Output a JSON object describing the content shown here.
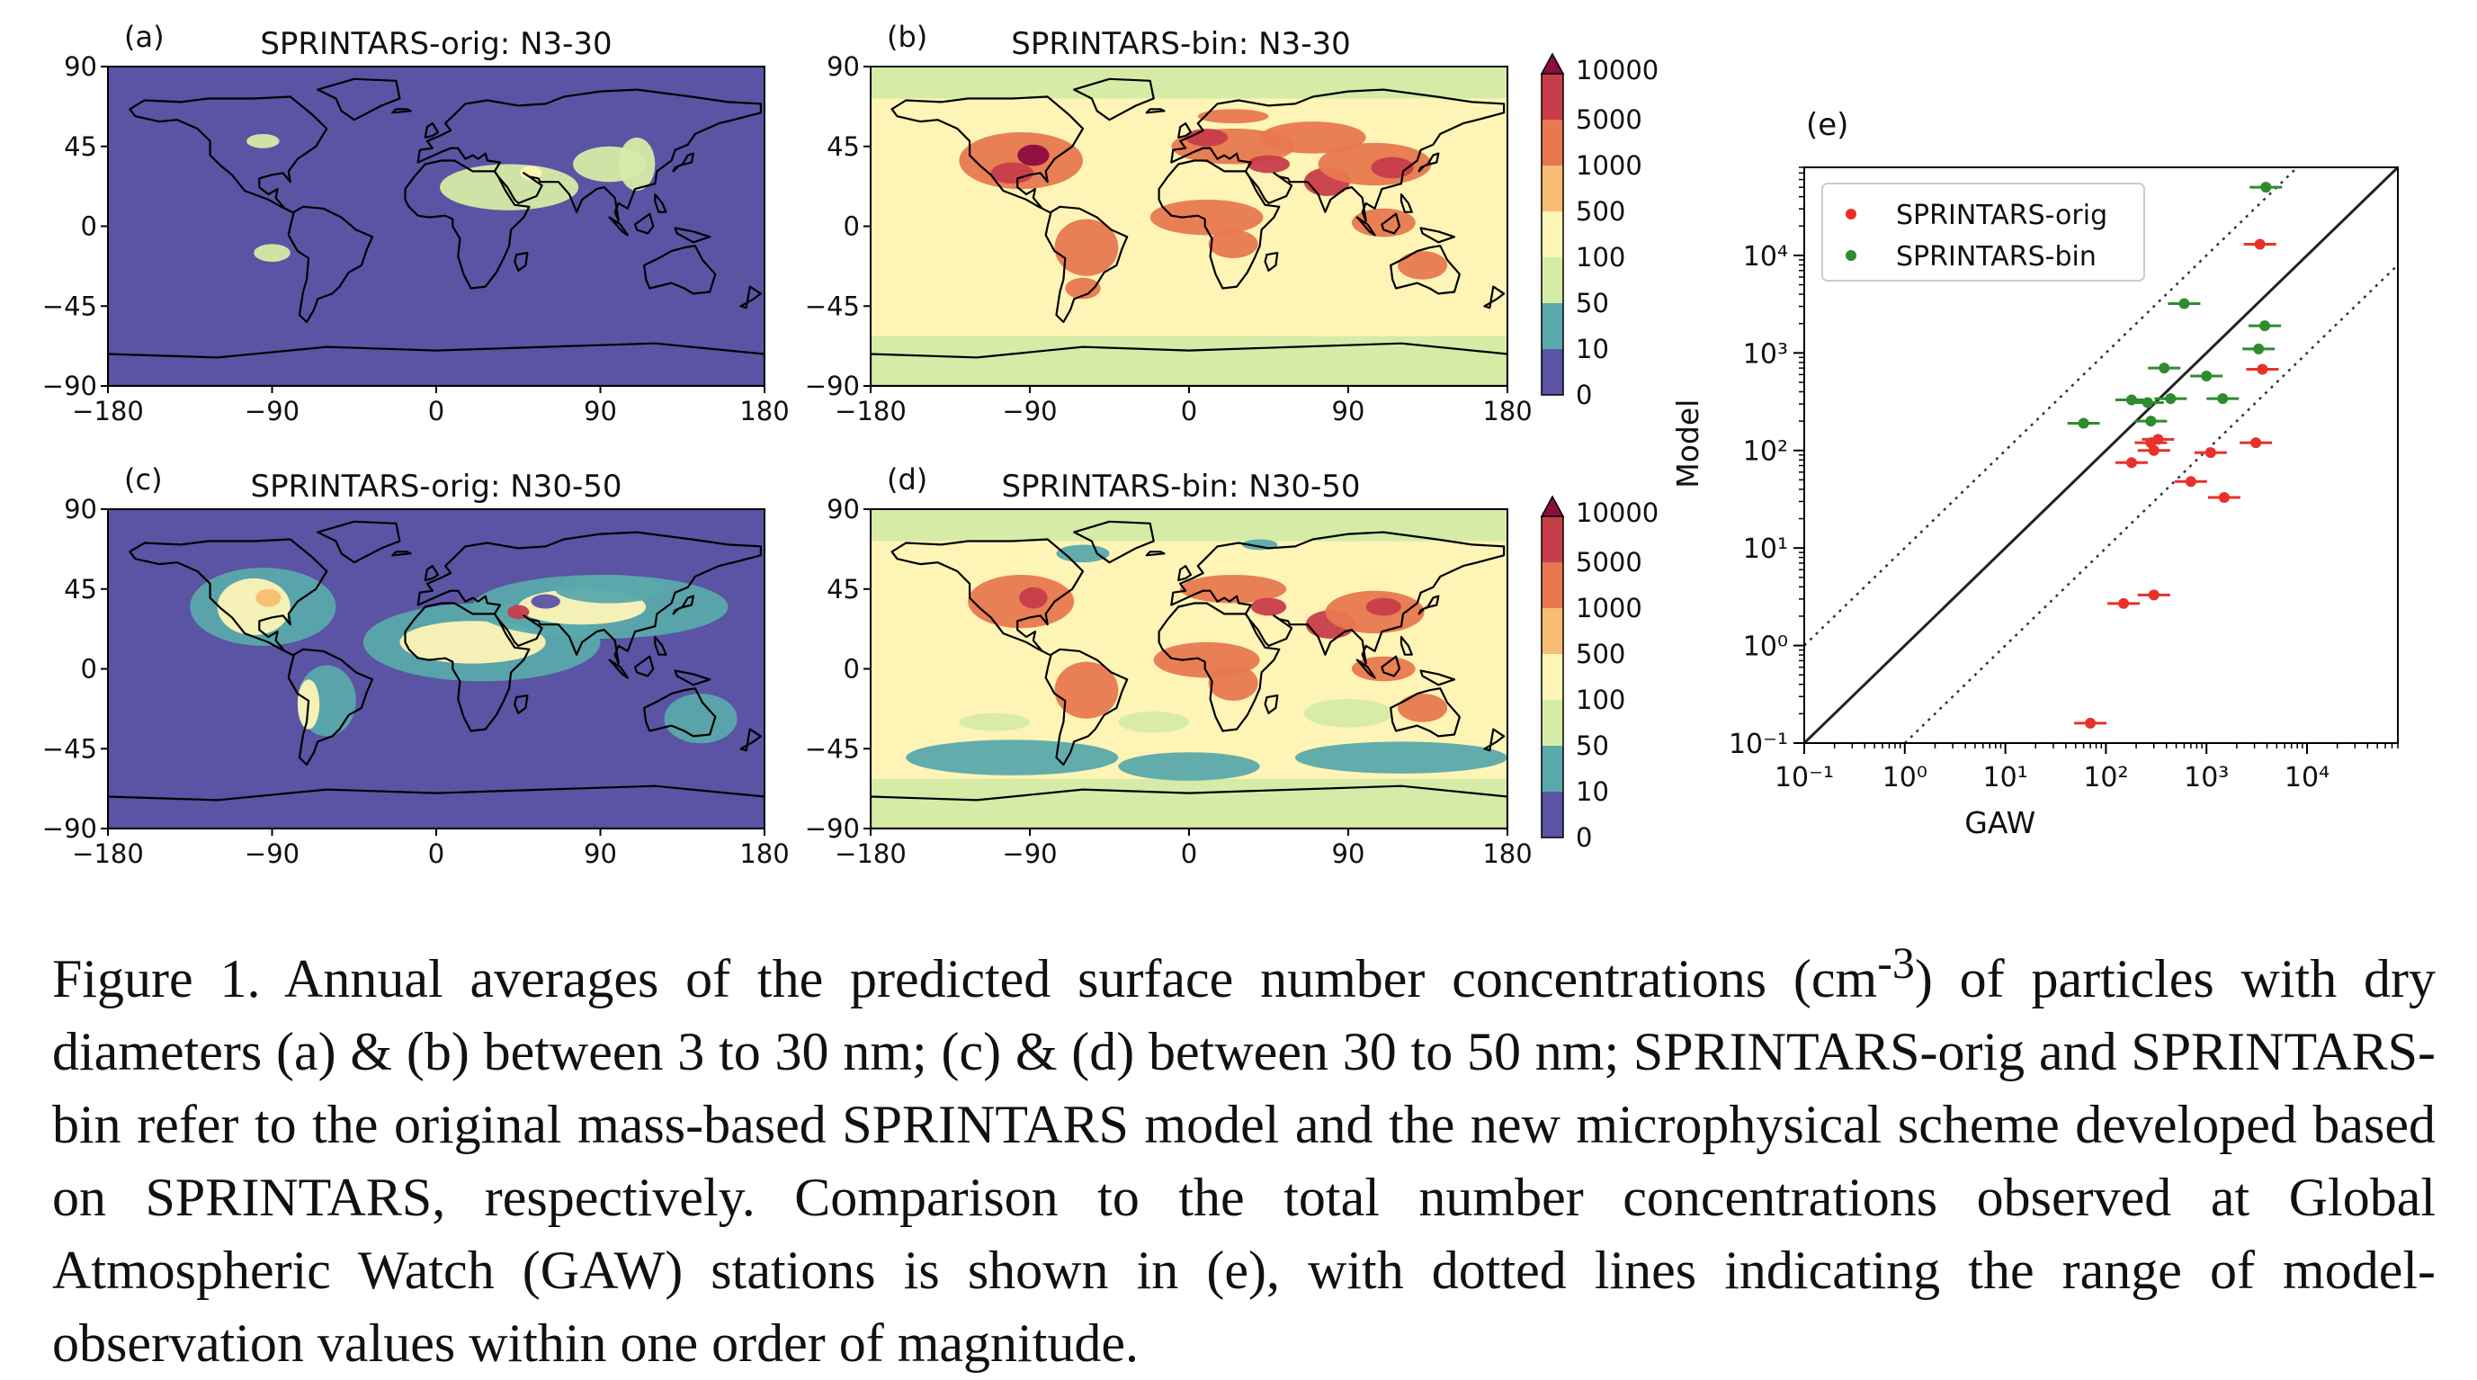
{
  "panels": [
    {
      "label": "(a)",
      "title": "SPRINTARS-orig: N3-30",
      "scheme": "orig_fine"
    },
    {
      "label": "(b)",
      "title": "SPRINTARS-bin: N3-30",
      "scheme": "bin_fine"
    },
    {
      "label": "(c)",
      "title": "SPRINTARS-orig: N30-50",
      "scheme": "orig_coarse"
    },
    {
      "label": "(d)",
      "title": "SPRINTARS-bin: N30-50",
      "scheme": "bin_coarse"
    }
  ],
  "map_axes": {
    "lon_ticks": [
      "−180",
      "−90",
      "0",
      "90",
      "180"
    ],
    "lat_ticks": [
      "90",
      "45",
      "0",
      "−45",
      "−90"
    ]
  },
  "colorbar": {
    "levels": [
      "10000",
      "5000",
      "1000",
      "500",
      "100",
      "50",
      "10",
      "0"
    ],
    "colors": [
      "#8c0d3f",
      "#c83d4a",
      "#e8784f",
      "#f7bd72",
      "#fdf4b6",
      "#d6eba6",
      "#5aa9ab",
      "#5b53a3"
    ]
  },
  "scatter": {
    "label": "(e)",
    "xlabel": "GAW",
    "ylabel": "Model",
    "x_ticks": [
      "10⁻¹",
      "10⁰",
      "10¹",
      "10²",
      "10³",
      "10⁴"
    ],
    "y_ticks": [
      "10⁴",
      "10³",
      "10²",
      "10¹",
      "10⁰",
      "10⁻¹"
    ],
    "legend": [
      {
        "name": "SPRINTARS-orig",
        "color": "#e8302a"
      },
      {
        "name": "SPRINTARS-bin",
        "color": "#2e8b2e"
      }
    ]
  },
  "chart_data": {
    "type": "scatter",
    "xscale": "log",
    "yscale": "log",
    "xlim": [
      0.1,
      80000
    ],
    "ylim": [
      0.1,
      80000
    ],
    "xlabel": "GAW",
    "ylabel": "Model",
    "reference_lines": [
      "1:1 (solid)",
      "×10 and ÷10 (dotted)"
    ],
    "series": [
      {
        "name": "SPRINTARS-orig",
        "color": "#e8302a",
        "points": [
          [
            3400,
            13000
          ],
          [
            3600,
            680
          ],
          [
            3100,
            120
          ],
          [
            1100,
            95
          ],
          [
            700,
            48
          ],
          [
            1500,
            33
          ],
          [
            280,
            120
          ],
          [
            330,
            130
          ],
          [
            300,
            100
          ],
          [
            180,
            75
          ],
          [
            300,
            3.3
          ],
          [
            150,
            2.7
          ],
          [
            70,
            0.16
          ]
        ]
      },
      {
        "name": "SPRINTARS-bin",
        "color": "#2e8b2e",
        "points": [
          [
            3900,
            50000
          ],
          [
            3800,
            1900
          ],
          [
            3300,
            1100
          ],
          [
            600,
            3200
          ],
          [
            380,
            700
          ],
          [
            1000,
            580
          ],
          [
            1450,
            340
          ],
          [
            440,
            340
          ],
          [
            180,
            330
          ],
          [
            260,
            310
          ],
          [
            280,
            200
          ],
          [
            60,
            190
          ]
        ]
      }
    ]
  },
  "caption": {
    "prefix": "Figure 1. Annual averages of the predicted surface number concentrations (cm",
    "superscript": "-3",
    "suffix": ") of particles with dry diameters (a) & (b) between 3 to 30 nm; (c) & (d) between 30 to 50 nm; SPRINTARS-orig and SPRINTARS-bin refer to the original mass-based SPRINTARS model and the new microphysical scheme developed based on SPRINTARS, respectively. Comparison to the total number concentrations observed at Global Atmospheric Watch (GAW) stations is shown in (e), with dotted lines indicating the range of model-observation values within one order of magnitude."
  }
}
